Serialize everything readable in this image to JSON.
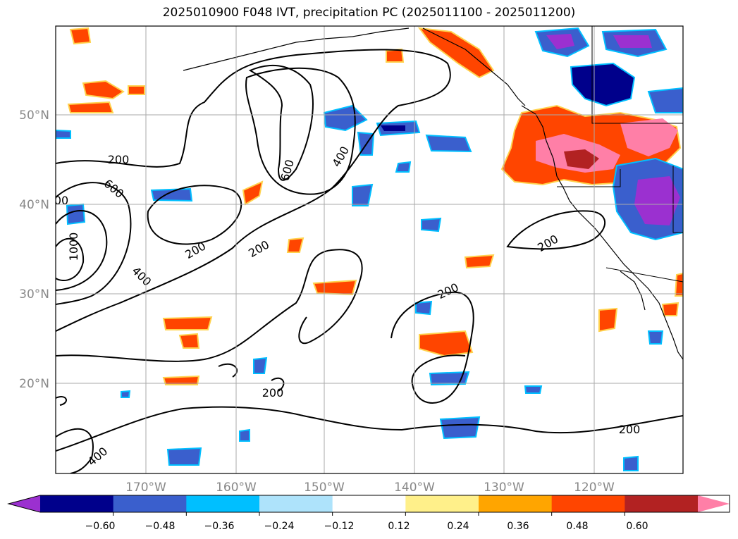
{
  "title": "2025010900 F048 IVT, precipitation PC (2025011100 - 2025011200)",
  "latitude_labels": [
    "50°N",
    "40°N",
    "30°N",
    "20°N"
  ],
  "longitude_labels": [
    "170°W",
    "160°W",
    "150°W",
    "140°W",
    "130°W",
    "120°W"
  ],
  "colorbar": {
    "levels": [
      "−0.60",
      "−0.48",
      "−0.36",
      "−0.24",
      "−0.12",
      "0.12",
      "0.24",
      "0.36",
      "0.48",
      "0.60"
    ],
    "colors": [
      "#9b30d0",
      "#00008b",
      "#3a5fcd",
      "#00bfff",
      "#aee3fb",
      "#ffffff",
      "#fff08a",
      "#ffa500",
      "#ff4500",
      "#b22222",
      "#ff7fa7"
    ]
  },
  "ivt_contour_labels": [
    "200",
    "200",
    "200",
    "200",
    "200",
    "200",
    "200",
    "400",
    "400",
    "400",
    "600",
    "600",
    "1000",
    "00"
  ]
}
